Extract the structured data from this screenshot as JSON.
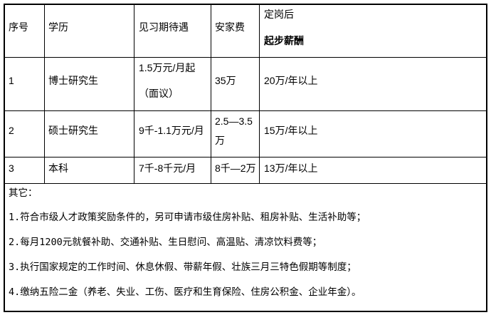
{
  "table": {
    "headers": [
      "序号",
      "学历",
      "见习期待遇",
      "安家费",
      [
        "定岗后",
        "起步薪酬"
      ]
    ],
    "rows": [
      {
        "no": "1",
        "degree": "博士研究生",
        "trainee_pay": [
          "1.5万元/月起",
          "（面议）"
        ],
        "settlement": [
          "35万"
        ],
        "salary": "20万/年以上"
      },
      {
        "no": "2",
        "degree": "硕士研究生",
        "trainee_pay": [
          "9千-1.1万元/月"
        ],
        "settlement": [
          "2.5—3.5",
          "万"
        ],
        "salary": "15万/年以上"
      },
      {
        "no": "3",
        "degree": "本科",
        "trainee_pay": [
          "7千-8千元/月"
        ],
        "settlement": [
          "8千—2万"
        ],
        "salary": "13万/年以上"
      }
    ]
  },
  "notes": {
    "title": "其它：",
    "items": [
      "1.符合市级人才政策奖励条件的，另可申请市级住房补贴、租房补贴、生活补助等；",
      "2.每月1200元就餐补助、交通补贴、生日慰问、高温贴、清凉饮料费等；",
      "3.执行国家规定的工作时间、休息休假、带薪年假、壮族三月三特色假期等制度；",
      "4.缴纳五险二金（养老、失业、工伤、医疗和生育保险、住房公积金、企业年金）。"
    ]
  }
}
